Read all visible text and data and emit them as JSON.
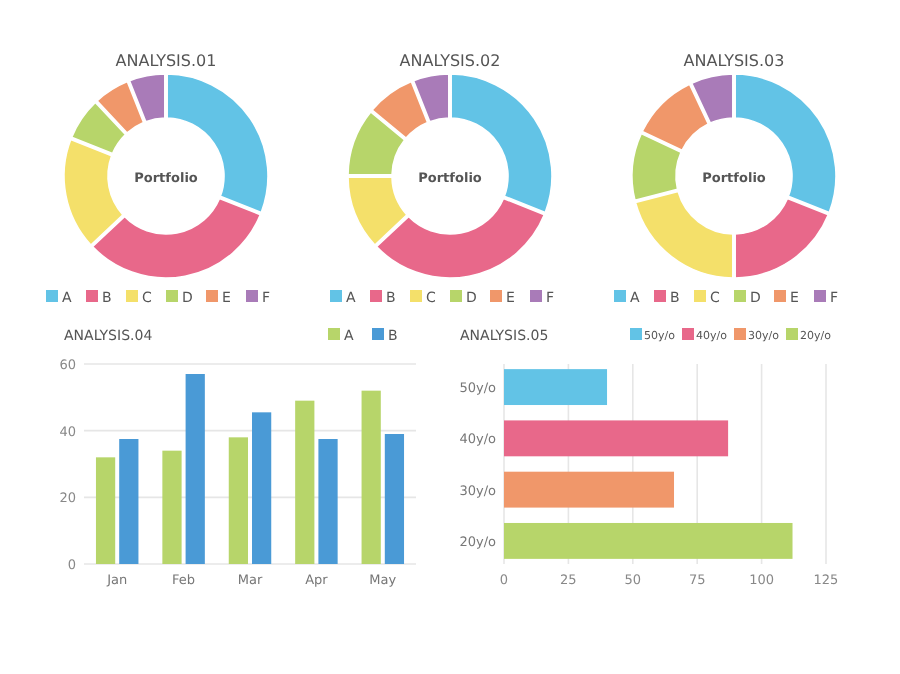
{
  "chart_data": [
    {
      "type": "donut",
      "title": "ANALYSIS.01",
      "annotations": [
        "Portfolio"
      ],
      "categories": [
        "A",
        "B",
        "C",
        "D",
        "E",
        "F"
      ],
      "values": [
        31,
        32,
        18,
        7,
        6,
        6
      ],
      "colors": [
        "#62c3e6",
        "#e8688a",
        "#f4e06a",
        "#b7d56a",
        "#f0976a",
        "#a97bb8"
      ],
      "legend": "bottom"
    },
    {
      "type": "donut",
      "title": "ANALYSIS.02",
      "annotations": [
        "Portfolio"
      ],
      "categories": [
        "A",
        "B",
        "C",
        "D",
        "E",
        "F"
      ],
      "values": [
        31,
        32,
        12,
        11,
        8,
        6
      ],
      "colors": [
        "#62c3e6",
        "#e8688a",
        "#f4e06a",
        "#b7d56a",
        "#f0976a",
        "#a97bb8"
      ],
      "legend": "bottom"
    },
    {
      "type": "donut",
      "title": "ANALYSIS.03",
      "annotations": [
        "Portfolio"
      ],
      "categories": [
        "A",
        "B",
        "C",
        "D",
        "E",
        "F"
      ],
      "values": [
        31,
        19,
        21,
        11,
        11,
        7
      ],
      "colors": [
        "#62c3e6",
        "#e8688a",
        "#f4e06a",
        "#b7d56a",
        "#f0976a",
        "#a97bb8"
      ],
      "legend": "bottom"
    },
    {
      "type": "bar",
      "title": "ANALYSIS.04",
      "categories": [
        "Jan",
        "Feb",
        "Mar",
        "Apr",
        "May"
      ],
      "series": [
        {
          "name": "A",
          "color": "#b7d56a",
          "values": [
            32,
            34,
            38,
            49,
            52
          ]
        },
        {
          "name": "B",
          "color": "#4a9ad6",
          "values": [
            37.5,
            57,
            45.5,
            37.5,
            39
          ]
        }
      ],
      "ylim": [
        0,
        60
      ],
      "yticks": [
        0,
        20,
        40,
        60
      ],
      "grid": "y",
      "legend": "top right"
    },
    {
      "type": "bar",
      "title": "ANALYSIS.05",
      "orientation": "horizontal",
      "stacked": true,
      "categories": [
        "50y/o",
        "40y/o",
        "30y/o",
        "20y/o"
      ],
      "series": [
        {
          "name": "50y/o",
          "color": "#62c3e6",
          "values": [
            40,
            null,
            null,
            null
          ]
        },
        {
          "name": "40y/o",
          "color": "#e8688a",
          "values": [
            null,
            87,
            null,
            null
          ]
        },
        {
          "name": "30y/o",
          "color": "#f0976a",
          "values": [
            null,
            null,
            66,
            null
          ]
        },
        {
          "name": "20y/o",
          "color": "#b7d56a",
          "values": [
            null,
            null,
            null,
            112
          ]
        }
      ],
      "xlim": [
        0,
        125
      ],
      "xticks": [
        0,
        25,
        50,
        75,
        100,
        125
      ],
      "grid": "x",
      "legend": "top"
    }
  ]
}
